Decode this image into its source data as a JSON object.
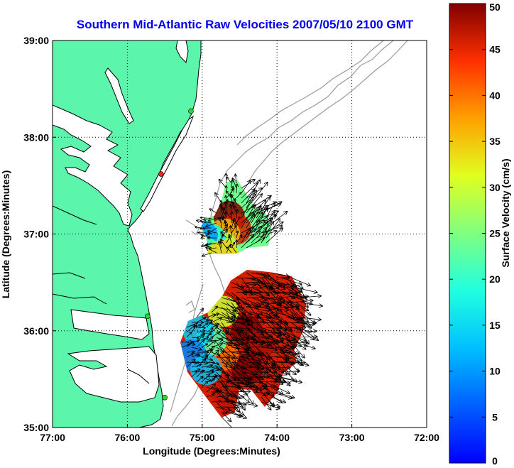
{
  "chart_data": {
    "type": "heatmap",
    "title": "Southern Mid-Atlantic Raw Velocities 2007/05/10 2100 GMT",
    "xlabel": "Longitude (Degrees:Minutes)",
    "ylabel": "Latitude (Degrees:Minutes)",
    "xlim": [
      -77,
      -72
    ],
    "ylim": [
      35,
      39
    ],
    "x_ticks": [
      {
        "value": -77,
        "label": "77:00"
      },
      {
        "value": -76,
        "label": "76:00"
      },
      {
        "value": -75,
        "label": "75:00"
      },
      {
        "value": -74,
        "label": "74:00"
      },
      {
        "value": -73,
        "label": "73:00"
      },
      {
        "value": -72,
        "label": "72:00"
      }
    ],
    "y_ticks": [
      {
        "value": 35,
        "label": "35:00"
      },
      {
        "value": 36,
        "label": "36:00"
      },
      {
        "value": 37,
        "label": "37:00"
      },
      {
        "value": 38,
        "label": "38:00"
      },
      {
        "value": 39,
        "label": "39:00"
      }
    ],
    "grid": true,
    "colorbar": {
      "label": "Surface Velocity (cm/s)",
      "min": 0,
      "max": 50,
      "ticks": [
        0,
        5,
        10,
        15,
        20,
        25,
        30,
        35,
        40,
        45,
        50
      ],
      "colormap": "jet"
    },
    "colors": {
      "title": "#0000ee",
      "land": "#5cf5ac",
      "coast": "#000000",
      "bathymetry": "#9a9a9a",
      "station": "#22dd22",
      "station_alt": "#ff2222",
      "grid": "#000000"
    },
    "stations": [
      {
        "lon": -75.15,
        "lat": 38.27,
        "color": "#22dd22"
      },
      {
        "lon": -75.55,
        "lat": 37.62,
        "color": "#ff2222"
      },
      {
        "lon": -75.73,
        "lat": 36.15,
        "color": "#22dd22"
      },
      {
        "lon": -75.5,
        "lat": 35.31,
        "color": "#22dd22"
      }
    ],
    "velocity_regions": [
      {
        "name": "north",
        "lon": -74.64,
        "lat": 37.18,
        "speed": 50
      },
      {
        "name": "north",
        "lon": -74.55,
        "lat": 37.05,
        "speed": 46
      },
      {
        "name": "north",
        "lon": -74.7,
        "lat": 37.0,
        "speed": 36
      },
      {
        "name": "north",
        "lon": -74.75,
        "lat": 36.88,
        "speed": 28
      },
      {
        "name": "north",
        "lon": -74.9,
        "lat": 36.95,
        "speed": 18
      },
      {
        "name": "north",
        "lon": -75.0,
        "lat": 36.98,
        "speed": 10
      },
      {
        "name": "north",
        "lon": -74.95,
        "lat": 36.8,
        "speed": 22
      },
      {
        "name": "north",
        "lon": -74.85,
        "lat": 36.72,
        "speed": 26
      },
      {
        "name": "north",
        "lon": -74.72,
        "lat": 36.78,
        "speed": 34
      },
      {
        "name": "south",
        "lon": -74.4,
        "lat": 36.0,
        "speed": 50
      },
      {
        "name": "south",
        "lon": -74.25,
        "lat": 35.85,
        "speed": 48
      },
      {
        "name": "south",
        "lon": -74.4,
        "lat": 35.6,
        "speed": 50
      },
      {
        "name": "south",
        "lon": -74.65,
        "lat": 35.35,
        "speed": 47
      },
      {
        "name": "south",
        "lon": -74.72,
        "lat": 35.75,
        "speed": 40
      },
      {
        "name": "south",
        "lon": -74.72,
        "lat": 36.2,
        "speed": 30
      },
      {
        "name": "south",
        "lon": -74.88,
        "lat": 35.9,
        "speed": 22
      },
      {
        "name": "south",
        "lon": -75.05,
        "lat": 36.0,
        "speed": 14
      },
      {
        "name": "south",
        "lon": -75.15,
        "lat": 35.75,
        "speed": 9
      },
      {
        "name": "south",
        "lon": -74.95,
        "lat": 35.6,
        "speed": 13
      }
    ]
  }
}
